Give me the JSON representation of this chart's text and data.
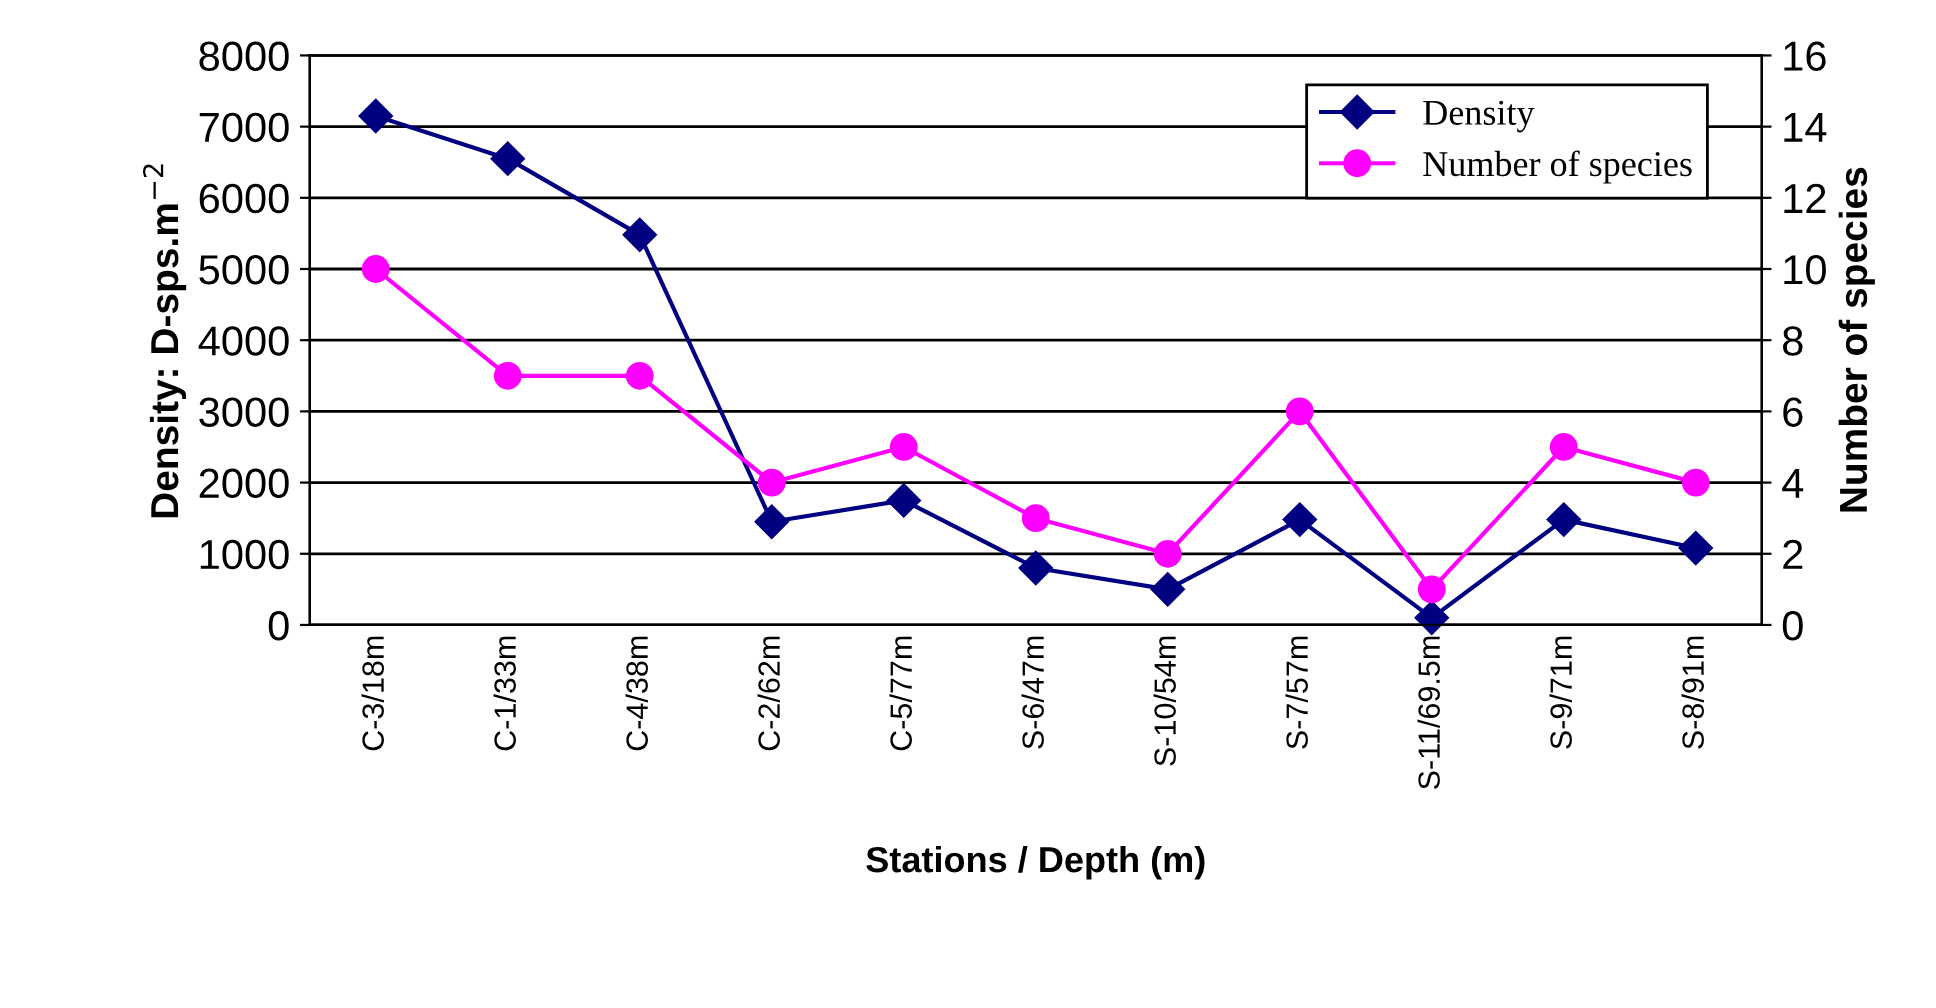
{
  "chart_data": {
    "type": "line",
    "categories": [
      "C-3/18m",
      "C-1/33m",
      "C-4/38m",
      "C-2/62m",
      "C-5/77m",
      "S-6/47m",
      "S-10/54m",
      "S-7/57m",
      "S-11/69.5m",
      "S-9/71m",
      "S-8/91m"
    ],
    "series": [
      {
        "name": "Density",
        "color": "#000080",
        "marker": "diamond",
        "values": [
          7150,
          6550,
          5480,
          1450,
          1750,
          800,
          500,
          1480,
          100,
          1480,
          1080
        ]
      },
      {
        "name": "Number of species",
        "color": "#ff00ff",
        "marker": "circle",
        "axis": "y2",
        "values": [
          10,
          7,
          7,
          4,
          5,
          3,
          2,
          6,
          1,
          5,
          4
        ]
      }
    ],
    "xlabel": "Stations / Depth (m)",
    "ylabel": "Density: D-sps.m$^{−2}$",
    "y2label": "Number of species",
    "ylim": [
      0,
      8000
    ],
    "yticks": [
      0,
      1000,
      2000,
      3000,
      4000,
      5000,
      6000,
      7000,
      8000
    ],
    "y2lim": [
      0,
      16
    ],
    "y2ticks": [
      0,
      2,
      4,
      6,
      8,
      10,
      12,
      14,
      16
    ],
    "grid": "y",
    "legend": "top right",
    "line_style": "solid"
  }
}
